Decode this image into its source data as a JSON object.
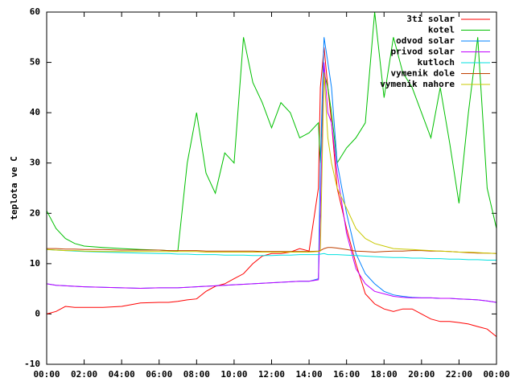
{
  "chart_data": {
    "type": "line",
    "y_label": "teplota ve C",
    "x": [
      0,
      0.5,
      1,
      1.5,
      2,
      3,
      4,
      5,
      6,
      6.5,
      7,
      7.5,
      8,
      8.5,
      9,
      9.5,
      10,
      10.5,
      11,
      11.5,
      12,
      12.5,
      13,
      13.5,
      14,
      14.5,
      14.6,
      14.8,
      15,
      15.2,
      15.5,
      16,
      16.5,
      17,
      17.5,
      18,
      18.5,
      19,
      19.5,
      20,
      20.5,
      21,
      21.5,
      22,
      22.5,
      23,
      23.5,
      24
    ],
    "xlim": [
      0,
      24
    ],
    "xticks": [
      {
        "value": 0,
        "label": "00:00"
      },
      {
        "value": 2,
        "label": "02:00"
      },
      {
        "value": 4,
        "label": "04:00"
      },
      {
        "value": 6,
        "label": "06:00"
      },
      {
        "value": 8,
        "label": "08:00"
      },
      {
        "value": 10,
        "label": "10:00"
      },
      {
        "value": 12,
        "label": "12:00"
      },
      {
        "value": 14,
        "label": "14:00"
      },
      {
        "value": 16,
        "label": "16:00"
      },
      {
        "value": 18,
        "label": "18:00"
      },
      {
        "value": 20,
        "label": "20:00"
      },
      {
        "value": 22,
        "label": "22:00"
      },
      {
        "value": 24,
        "label": "00:00"
      }
    ],
    "ylim": [
      -10,
      60
    ],
    "yticks": [
      -10,
      0,
      10,
      20,
      30,
      40,
      50,
      60
    ],
    "grid": false,
    "legend": "top-right",
    "series": [
      {
        "name": "3ti solar",
        "color": "#ff0000",
        "values": [
          0,
          0.5,
          1.5,
          1.3,
          1.3,
          1.3,
          1.5,
          2.2,
          2.3,
          2.3,
          2.5,
          2.8,
          3,
          4.5,
          5.5,
          6,
          7,
          8,
          10,
          11.5,
          12,
          12,
          12.3,
          13,
          12.5,
          25,
          45,
          53,
          45,
          38,
          25,
          17,
          10,
          4,
          2,
          1,
          0.5,
          1,
          1,
          0,
          -1,
          -1.5,
          -1.5,
          -1.7,
          -2,
          -2.5,
          -3,
          -4.5
        ]
      },
      {
        "name": "kotel",
        "color": "#00c000",
        "values": [
          20.5,
          17,
          15,
          14,
          13.5,
          13.2,
          13,
          12.8,
          12.7,
          12.6,
          12.5,
          30,
          40,
          28,
          24,
          32,
          30,
          55,
          46,
          42,
          37,
          42,
          40,
          35,
          36,
          38,
          30,
          48,
          45,
          40,
          30,
          33,
          35,
          38,
          60,
          43,
          55,
          48,
          45,
          40,
          35,
          45,
          34,
          22,
          40,
          55,
          25,
          17
        ]
      },
      {
        "name": "odvod solar",
        "color": "#0080ff",
        "values": [
          6,
          5.7,
          5.6,
          5.5,
          5.4,
          5.3,
          5.2,
          5.1,
          5.2,
          5.2,
          5.2,
          5.3,
          5.4,
          5.5,
          5.6,
          5.7,
          5.8,
          5.9,
          6,
          6.1,
          6.2,
          6.3,
          6.4,
          6.5,
          6.5,
          7,
          30,
          55,
          50,
          45,
          30,
          20,
          12,
          8,
          6,
          4.5,
          3.8,
          3.5,
          3.3,
          3.2,
          3.2,
          3.1,
          3.1,
          3,
          2.9,
          2.8,
          2.6,
          2.3
        ]
      },
      {
        "name": "privod solar",
        "color": "#c000ff",
        "values": [
          6,
          5.7,
          5.6,
          5.5,
          5.4,
          5.3,
          5.2,
          5.1,
          5.2,
          5.2,
          5.2,
          5.3,
          5.4,
          5.5,
          5.6,
          5.7,
          5.8,
          5.9,
          6,
          6.1,
          6.2,
          6.3,
          6.4,
          6.5,
          6.5,
          6.8,
          20,
          50,
          40,
          38,
          28,
          16,
          9,
          6,
          4.5,
          4,
          3.5,
          3.3,
          3.2,
          3.2,
          3.2,
          3.1,
          3.1,
          3,
          2.9,
          2.8,
          2.6,
          2.3
        ]
      },
      {
        "name": "kutloch",
        "color": "#00e0e0",
        "values": [
          12.8,
          12.7,
          12.6,
          12.5,
          12.4,
          12.3,
          12.2,
          12.1,
          12,
          12,
          11.9,
          11.9,
          11.8,
          11.8,
          11.8,
          11.7,
          11.7,
          11.7,
          11.6,
          11.6,
          11.6,
          11.7,
          11.7,
          11.8,
          11.8,
          11.8,
          11.9,
          12,
          11.8,
          11.8,
          11.8,
          11.7,
          11.6,
          11.5,
          11.4,
          11.3,
          11.2,
          11.2,
          11.1,
          11.1,
          11,
          11,
          10.9,
          10.9,
          10.8,
          10.8,
          10.7,
          10.7
        ]
      },
      {
        "name": "vymenik dole",
        "color": "#c04000",
        "values": [
          13,
          13,
          12.9,
          12.9,
          12.8,
          12.8,
          12.7,
          12.7,
          12.7,
          12.6,
          12.6,
          12.6,
          12.6,
          12.5,
          12.5,
          12.5,
          12.5,
          12.5,
          12.5,
          12.4,
          12.4,
          12.4,
          12.4,
          12.4,
          12.4,
          12.5,
          12.6,
          13,
          13.2,
          13.2,
          13.1,
          12.8,
          12.5,
          12.4,
          12.3,
          12.4,
          12.5,
          12.5,
          12.6,
          12.6,
          12.5,
          12.5,
          12.4,
          12.3,
          12.2,
          12.1,
          12.1,
          12
        ]
      },
      {
        "name": "vymenik nahore",
        "color": "#c8c800",
        "values": [
          12.8,
          12.7,
          12.6,
          12.6,
          12.5,
          12.4,
          12.4,
          12.4,
          12.4,
          12.4,
          12.4,
          12.4,
          12.4,
          12.3,
          12.3,
          12.3,
          12.3,
          12.3,
          12.3,
          12.3,
          12.3,
          12.3,
          12.3,
          12.3,
          12.3,
          12.4,
          12.5,
          48,
          35,
          30,
          25,
          21,
          17,
          15,
          14,
          13.5,
          13,
          12.9,
          12.8,
          12.7,
          12.6,
          12.5,
          12.4,
          12.3,
          12.3,
          12.2,
          12.1,
          12
        ]
      }
    ]
  }
}
